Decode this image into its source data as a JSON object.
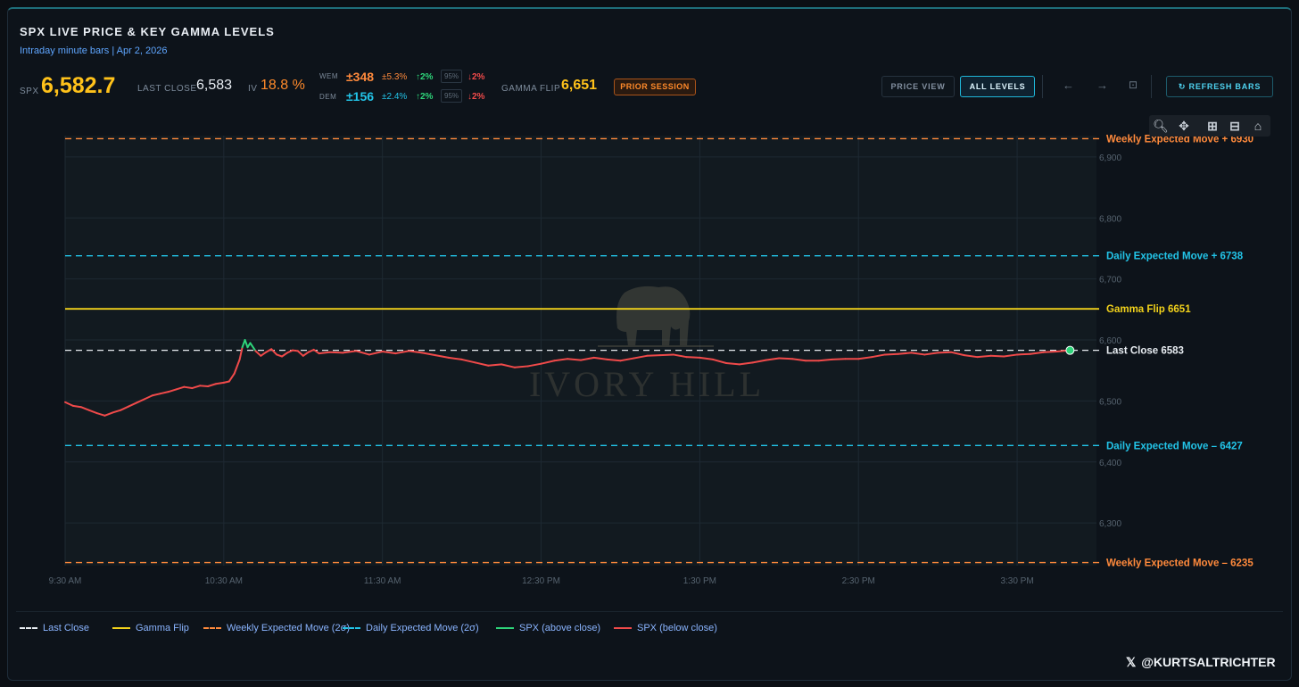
{
  "header": {
    "title": "SPX LIVE PRICE & KEY GAMMA LEVELS",
    "subtitle": "Intraday minute bars | Apr 2, 2026"
  },
  "stats": {
    "spx_label": "SPX",
    "spx_value": "6,582.7",
    "last_close_label": "LAST CLOSE",
    "last_close_value": "6,583",
    "iv_label": "IV",
    "iv_value": "18.8 %",
    "wem_label": "WEM",
    "wem_value": "±348",
    "wem_pct": "±5.3%",
    "wem_up": "↑2%",
    "wem_conf": "95%",
    "wem_down": "↓2%",
    "dem_label": "DEM",
    "dem_value": "±156",
    "dem_pct": "±2.4%",
    "dem_up": "↑2%",
    "dem_conf": "95%",
    "dem_down": "↓2%",
    "gamma_flip_label": "GAMMA FLIP",
    "gamma_flip_value": "6,651",
    "prior_session": "PRIOR SESSION"
  },
  "toolbar": {
    "price_view": "PRICE VIEW",
    "all_levels": "ALL LEVELS",
    "back_icon": "←",
    "forward_icon": "→",
    "expand_icon": "⊡",
    "refresh": "↻ REFRESH BARS"
  },
  "chart_data": {
    "type": "line",
    "x_ticks": [
      "9:30 AM",
      "10:30 AM",
      "11:30 AM",
      "12:30 PM",
      "1:30 PM",
      "2:30 PM",
      "3:30 PM"
    ],
    "y_ticks": [
      "6,900",
      "6,800",
      "6,700",
      "6,600",
      "6,500",
      "6,400",
      "6,300"
    ],
    "ylim": [
      6230,
      6935
    ],
    "x_range_minutes": [
      0,
      390
    ],
    "levels": [
      {
        "name": "Weekly Expected Move +",
        "value": 6930,
        "label": "Weekly Expected Move +  6930",
        "color": "#ff8a3c",
        "dash": true
      },
      {
        "name": "Daily Expected Move +",
        "value": 6738,
        "label": "Daily Expected Move +  6738",
        "color": "#22c4e8",
        "dash": true
      },
      {
        "name": "Gamma Flip",
        "value": 6651,
        "label": "Gamma Flip  6651",
        "color": "#f2d21b",
        "dash": false
      },
      {
        "name": "Last Close",
        "value": 6583,
        "label": "Last Close  6583",
        "color": "#e8edf2",
        "dash": true
      },
      {
        "name": "Daily Expected Move –",
        "value": 6427,
        "label": "Daily Expected Move –  6427",
        "color": "#22c4e8",
        "dash": true
      },
      {
        "name": "Weekly Expected Move –",
        "value": 6235,
        "label": "Weekly Expected Move –  6235",
        "color": "#ff8a3c",
        "dash": true
      }
    ],
    "series": [
      {
        "name": "SPX",
        "points": [
          [
            0,
            6498
          ],
          [
            3,
            6492
          ],
          [
            6,
            6490
          ],
          [
            9,
            6485
          ],
          [
            12,
            6480
          ],
          [
            15,
            6476
          ],
          [
            18,
            6481
          ],
          [
            21,
            6485
          ],
          [
            24,
            6491
          ],
          [
            27,
            6497
          ],
          [
            30,
            6503
          ],
          [
            33,
            6509
          ],
          [
            36,
            6512
          ],
          [
            39,
            6515
          ],
          [
            42,
            6519
          ],
          [
            45,
            6523
          ],
          [
            48,
            6521
          ],
          [
            51,
            6525
          ],
          [
            54,
            6524
          ],
          [
            57,
            6528
          ],
          [
            60,
            6530
          ],
          [
            62,
            6532
          ],
          [
            64,
            6545
          ],
          [
            66,
            6568
          ],
          [
            67,
            6588
          ],
          [
            68,
            6600
          ],
          [
            69,
            6588
          ],
          [
            70,
            6595
          ],
          [
            72,
            6582
          ],
          [
            74,
            6574
          ],
          [
            76,
            6580
          ],
          [
            78,
            6585
          ],
          [
            80,
            6576
          ],
          [
            82,
            6573
          ],
          [
            84,
            6579
          ],
          [
            86,
            6583
          ],
          [
            88,
            6582
          ],
          [
            90,
            6574
          ],
          [
            92,
            6580
          ],
          [
            94,
            6584
          ],
          [
            96,
            6578
          ],
          [
            100,
            6580
          ],
          [
            105,
            6579
          ],
          [
            110,
            6582
          ],
          [
            115,
            6576
          ],
          [
            120,
            6581
          ],
          [
            125,
            6578
          ],
          [
            130,
            6582
          ],
          [
            135,
            6579
          ],
          [
            140,
            6575
          ],
          [
            145,
            6571
          ],
          [
            150,
            6568
          ],
          [
            155,
            6563
          ],
          [
            160,
            6558
          ],
          [
            165,
            6560
          ],
          [
            170,
            6555
          ],
          [
            175,
            6557
          ],
          [
            180,
            6561
          ],
          [
            185,
            6566
          ],
          [
            190,
            6569
          ],
          [
            195,
            6567
          ],
          [
            200,
            6571
          ],
          [
            205,
            6568
          ],
          [
            210,
            6566
          ],
          [
            215,
            6570
          ],
          [
            220,
            6574
          ],
          [
            225,
            6575
          ],
          [
            230,
            6576
          ],
          [
            235,
            6572
          ],
          [
            240,
            6571
          ],
          [
            245,
            6568
          ],
          [
            250,
            6562
          ],
          [
            255,
            6560
          ],
          [
            260,
            6563
          ],
          [
            265,
            6567
          ],
          [
            270,
            6570
          ],
          [
            275,
            6569
          ],
          [
            280,
            6566
          ],
          [
            285,
            6566
          ],
          [
            290,
            6568
          ],
          [
            295,
            6569
          ],
          [
            300,
            6569
          ],
          [
            305,
            6572
          ],
          [
            310,
            6576
          ],
          [
            315,
            6577
          ],
          [
            320,
            6579
          ],
          [
            325,
            6576
          ],
          [
            330,
            6579
          ],
          [
            335,
            6580
          ],
          [
            340,
            6575
          ],
          [
            345,
            6572
          ],
          [
            350,
            6574
          ],
          [
            355,
            6573
          ],
          [
            360,
            6576
          ],
          [
            365,
            6577
          ],
          [
            370,
            6580
          ],
          [
            375,
            6581
          ],
          [
            380,
            6583
          ]
        ]
      }
    ],
    "last_close": 6583,
    "colors": {
      "above": "#2ed47a",
      "below": "#f04a4a"
    },
    "watermark": "IVORY HILL"
  },
  "legend": [
    {
      "label": "Last Close",
      "color": "#e8edf2",
      "dash": true
    },
    {
      "label": "Gamma Flip",
      "color": "#f2d21b",
      "dash": false
    },
    {
      "label": "Weekly Expected Move (2σ)",
      "color": "#ff8a3c",
      "dash": true
    },
    {
      "label": "Daily Expected Move (2σ)",
      "color": "#22c4e8",
      "dash": true
    },
    {
      "label": "SPX (above close)",
      "color": "#2ed47a",
      "dash": false
    },
    {
      "label": "SPX (below close)",
      "color": "#f04a4a",
      "dash": false
    }
  ],
  "footer": {
    "x_logo": "𝕏",
    "handle": "@KURTSALTRICHTER"
  }
}
